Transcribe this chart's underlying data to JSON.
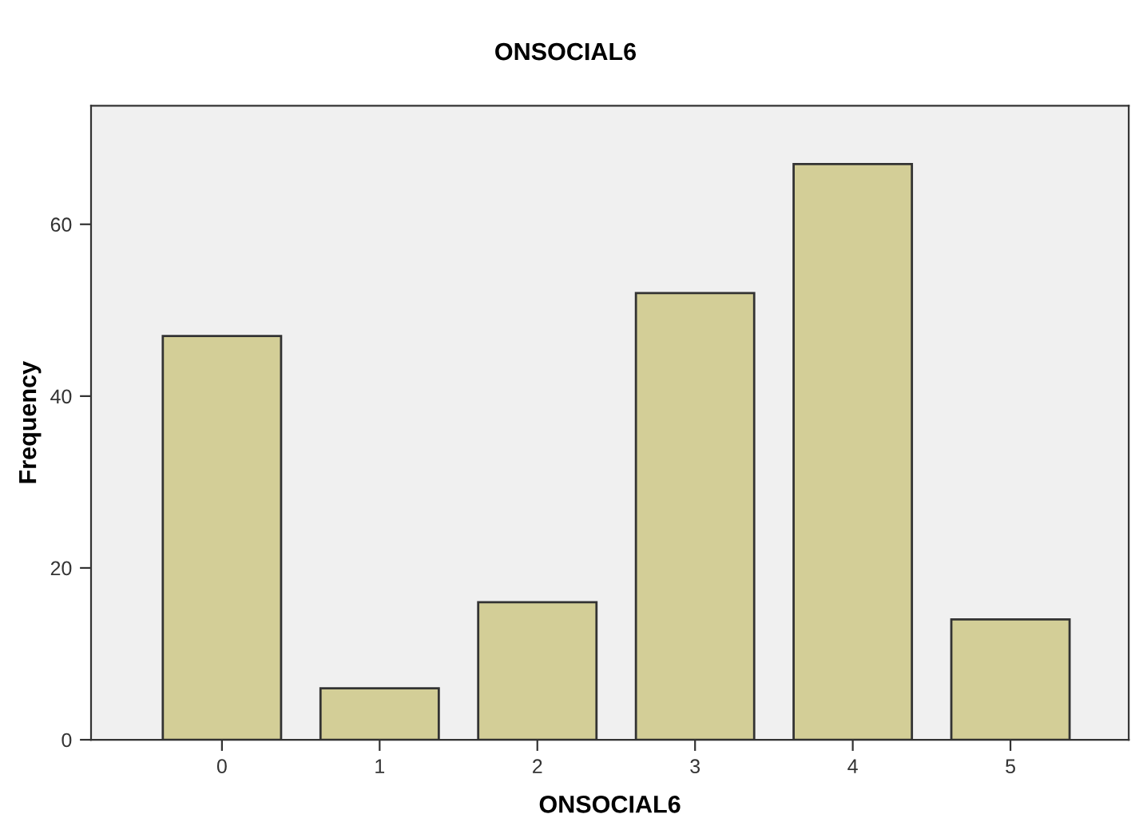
{
  "chart_data": {
    "type": "bar",
    "title": "ONSOCIAL6",
    "xlabel": "ONSOCIAL6",
    "ylabel": "Frequency",
    "categories": [
      "0",
      "1",
      "2",
      "3",
      "4",
      "5"
    ],
    "values": [
      47,
      6,
      16,
      52,
      67,
      14
    ],
    "color": "#d3ce97",
    "ylim": [
      0,
      73.8
    ],
    "yticks": [
      0,
      20,
      40,
      60
    ],
    "grid": false,
    "legend": false
  }
}
